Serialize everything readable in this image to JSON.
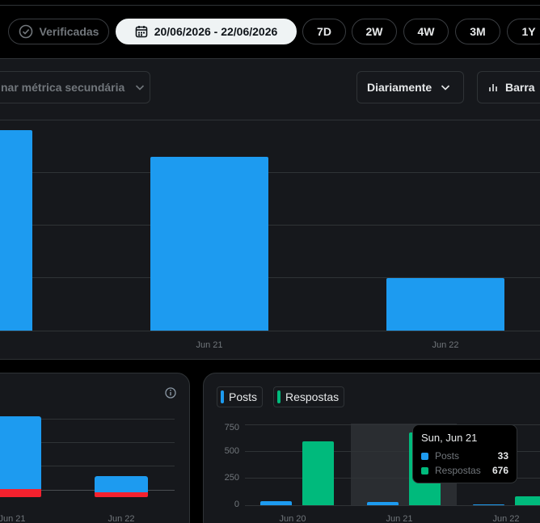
{
  "toolbar": {
    "verified_label": "Verificadas",
    "date_range": "20/06/2026 - 22/06/2026",
    "ranges": [
      "7D",
      "2W",
      "4W",
      "3M",
      "1Y"
    ]
  },
  "main_chart": {
    "secondary_metric_placeholder": "nar métrica secundária",
    "interval_label": "Diariamente",
    "chart_type_label": "Barra"
  },
  "chart_data": [
    {
      "type": "bar",
      "categories": [
        "Jun 20",
        "Jun 21",
        "Jun 22"
      ],
      "visible_tick_labels": [
        "Jun 21",
        "Jun 22"
      ],
      "values": [
        38,
        33,
        10
      ],
      "colors": {
        "bar": "#1d9bf0"
      }
    },
    {
      "type": "bar",
      "categories": [
        "Jun 21",
        "Jun 22"
      ],
      "series": [
        {
          "values": [
            13,
            3
          ],
          "color": "#1d9bf0"
        },
        {
          "values": [
            1.5,
            0.8
          ],
          "color": "#f4212e"
        }
      ]
    },
    {
      "type": "bar",
      "categories": [
        "Jun 20",
        "Jun 21",
        "Jun 22"
      ],
      "series": [
        {
          "name": "Posts",
          "values": [
            38,
            33,
            10
          ],
          "color": "#1d9bf0"
        },
        {
          "name": "Respostas",
          "values": [
            592,
            676,
            80
          ],
          "color": "#00ba7c"
        }
      ],
      "yticks": [
        "750",
        "500",
        "250",
        "0"
      ],
      "ylim": [
        0,
        750
      ],
      "highlight": "Jun 21",
      "tooltip": {
        "title": "Sun, Jun 21",
        "rows": [
          {
            "name": "Posts",
            "value": "33"
          },
          {
            "name": "Respostas",
            "value": "676"
          }
        ]
      }
    }
  ]
}
